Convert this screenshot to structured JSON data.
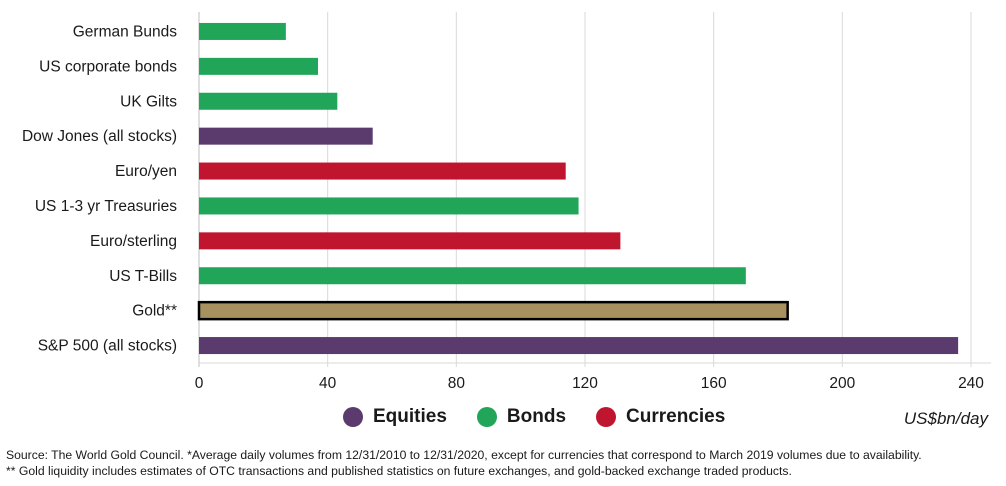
{
  "chart_data": {
    "type": "bar",
    "orientation": "horizontal",
    "categories": [
      "German Bunds",
      "US corporate bonds",
      "UK Gilts",
      "Dow Jones (all stocks)",
      "Euro/yen",
      "US 1-3 yr Treasuries",
      "Euro/sterling",
      "US T-Bills",
      "Gold**",
      "S&P 500 (all stocks)"
    ],
    "values": [
      27,
      37,
      43,
      54,
      114,
      118,
      131,
      170,
      183,
      236
    ],
    "groups": [
      "Bonds",
      "Bonds",
      "Bonds",
      "Equities",
      "Currencies",
      "Bonds",
      "Currencies",
      "Bonds",
      "Gold",
      "Equities"
    ],
    "xlim": [
      0,
      240
    ],
    "xticks": [
      0,
      40,
      80,
      120,
      160,
      200,
      240
    ],
    "grid": true,
    "legend_position": "bottom-center"
  },
  "colors": {
    "Equities": "#5b3a6e",
    "Bonds": "#21a558",
    "Currencies": "#c0152f",
    "Gold": "#a6915f",
    "gold_border": "#000000",
    "grid": "#d9d9d9"
  },
  "legend": [
    {
      "label": "Equities",
      "group": "Equities"
    },
    {
      "label": "Bonds",
      "group": "Bonds"
    },
    {
      "label": "Currencies",
      "group": "Currencies"
    }
  ],
  "unit_label": "US$bn/day",
  "source_line1": "Source: The World Gold Council. *Average daily volumes from 12/31/2010 to 12/31/2020, except for currencies that correspond to March 2019 volumes due to availability.",
  "source_line2": "** Gold liquidity includes estimates of OTC transactions and published statistics on future exchanges, and gold-backed exchange traded products."
}
